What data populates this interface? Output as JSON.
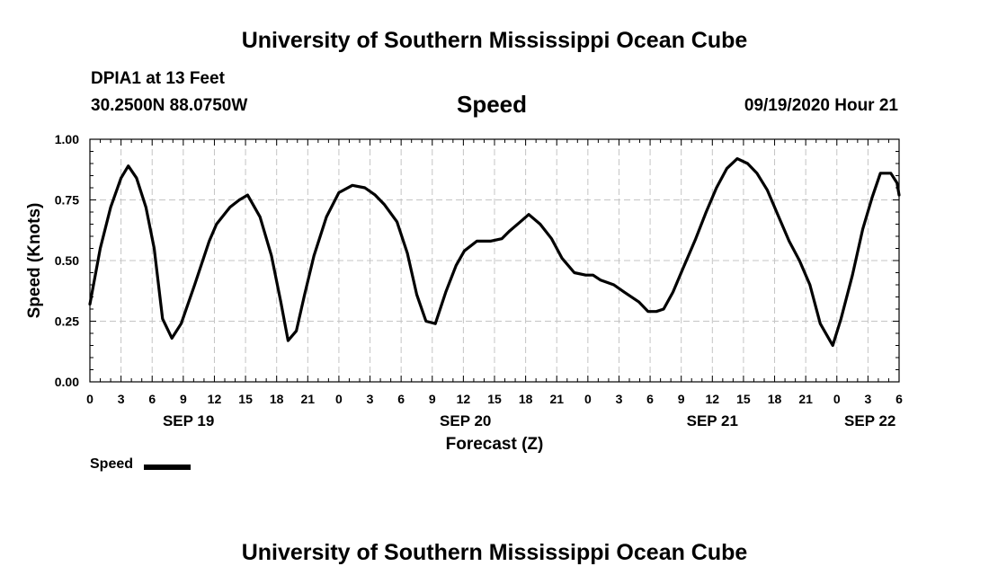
{
  "header": {
    "top_title": "University of Southern Mississippi Ocean Cube",
    "station": "DPIA1 at 13 Feet",
    "coords": "30.2500N 88.0750W",
    "variable": "Speed",
    "datetime": "09/19/2020 Hour 21"
  },
  "footer": {
    "bottom_title": "University of Southern Mississippi Ocean Cube"
  },
  "legend": {
    "label": "Speed",
    "color": "#000000"
  },
  "chart_data": {
    "type": "line",
    "title": "Speed",
    "xlabel": "Forecast (Z)",
    "ylabel": "Speed (Knots)",
    "ylim": [
      0,
      1
    ],
    "xlim": [
      0,
      78
    ],
    "grid": true,
    "yticks": [
      0,
      0.25,
      0.5,
      0.75,
      1.0
    ],
    "ytick_labels": [
      "0.00",
      "0.25",
      "0.50",
      "0.75",
      "1.00"
    ],
    "xticks": [
      0,
      3,
      6,
      9,
      12,
      15,
      18,
      21,
      24,
      27,
      30,
      33,
      36,
      39,
      42,
      45,
      48,
      51,
      54,
      57,
      60,
      63,
      66,
      69,
      72,
      75,
      78
    ],
    "xtick_labels": [
      "0",
      "3",
      "6",
      "9",
      "12",
      "15",
      "18",
      "21",
      "0",
      "3",
      "6",
      "9",
      "12",
      "15",
      "18",
      "21",
      "0",
      "3",
      "6",
      "9",
      "12",
      "15",
      "18",
      "21",
      "0",
      "3",
      "6"
    ],
    "date_labels": [
      {
        "x": 9.5,
        "label": "SEP 19"
      },
      {
        "x": 36.2,
        "label": "SEP 20"
      },
      {
        "x": 60,
        "label": "SEP 21"
      },
      {
        "x": 75.2,
        "label": "SEP 22"
      }
    ],
    "series": [
      {
        "name": "Speed",
        "color": "#000000",
        "x": [
          0,
          1,
          2,
          3,
          3.7,
          4.5,
          5.4,
          6.2,
          7,
          7.9,
          8.8,
          10.1,
          11.5,
          12.2,
          13.5,
          14.4,
          15.2,
          16.4,
          17.5,
          18.4,
          19.1,
          19.9,
          20.7,
          21.6,
          22.8,
          24,
          25.3,
          26.5,
          27.5,
          28.4,
          29.6,
          30.6,
          31.5,
          32.4,
          33.3,
          34.3,
          35.3,
          36.1,
          37.3,
          38.6,
          39.7,
          40.4,
          41.5,
          42.3,
          43.4,
          44.5,
          45.5,
          46.7,
          47.8,
          48.5,
          49.2,
          50.5,
          51.5,
          52.9,
          53.8,
          54.6,
          55.3,
          56.2,
          57.1,
          58.4,
          59.4,
          60.4,
          61.4,
          62.4,
          63.4,
          64.3,
          65.3,
          66.3,
          67.4,
          68.4,
          69.4,
          70.4,
          71.6,
          72.4,
          73.5,
          74.5,
          75.4,
          76.2,
          77.2,
          77.8,
          78
        ],
        "values": [
          0.32,
          0.55,
          0.72,
          0.84,
          0.89,
          0.84,
          0.72,
          0.55,
          0.26,
          0.18,
          0.24,
          0.4,
          0.58,
          0.65,
          0.72,
          0.75,
          0.77,
          0.68,
          0.52,
          0.33,
          0.17,
          0.21,
          0.36,
          0.52,
          0.68,
          0.78,
          0.81,
          0.8,
          0.77,
          0.73,
          0.66,
          0.53,
          0.36,
          0.25,
          0.24,
          0.37,
          0.48,
          0.54,
          0.58,
          0.58,
          0.59,
          0.62,
          0.66,
          0.69,
          0.65,
          0.59,
          0.51,
          0.45,
          0.44,
          0.44,
          0.42,
          0.4,
          0.37,
          0.33,
          0.29,
          0.29,
          0.3,
          0.37,
          0.46,
          0.59,
          0.7,
          0.8,
          0.88,
          0.92,
          0.9,
          0.86,
          0.79,
          0.69,
          0.58,
          0.5,
          0.4,
          0.24,
          0.15,
          0.26,
          0.44,
          0.63,
          0.76,
          0.86,
          0.86,
          0.82,
          0.77
        ]
      }
    ]
  }
}
